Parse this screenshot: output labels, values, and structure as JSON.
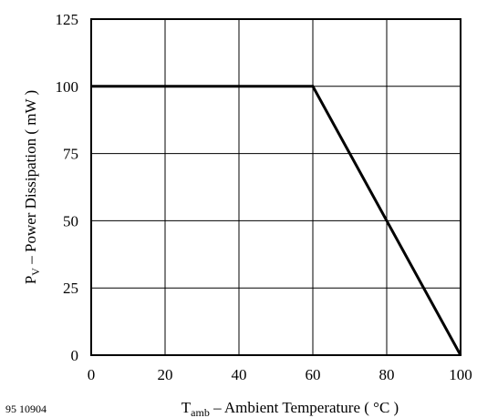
{
  "chart_data": {
    "type": "line",
    "title": "",
    "xlabel": {
      "main": "T",
      "sub": "amb",
      "rest": " – Ambient Temperature ( °C )"
    },
    "ylabel": {
      "main": "P",
      "sub": "V",
      "rest": " – Power Dissipation ( mW )"
    },
    "xlim": [
      0,
      100
    ],
    "ylim": [
      0,
      125
    ],
    "x_ticks": [
      0,
      20,
      40,
      60,
      80,
      100
    ],
    "y_ticks": [
      0,
      25,
      50,
      75,
      100,
      125
    ],
    "grid": true,
    "series": [
      {
        "x": [
          0,
          60,
          100
        ],
        "y": [
          100,
          100,
          0
        ],
        "color": "#000000"
      }
    ],
    "figure_ref": "95 10904"
  }
}
